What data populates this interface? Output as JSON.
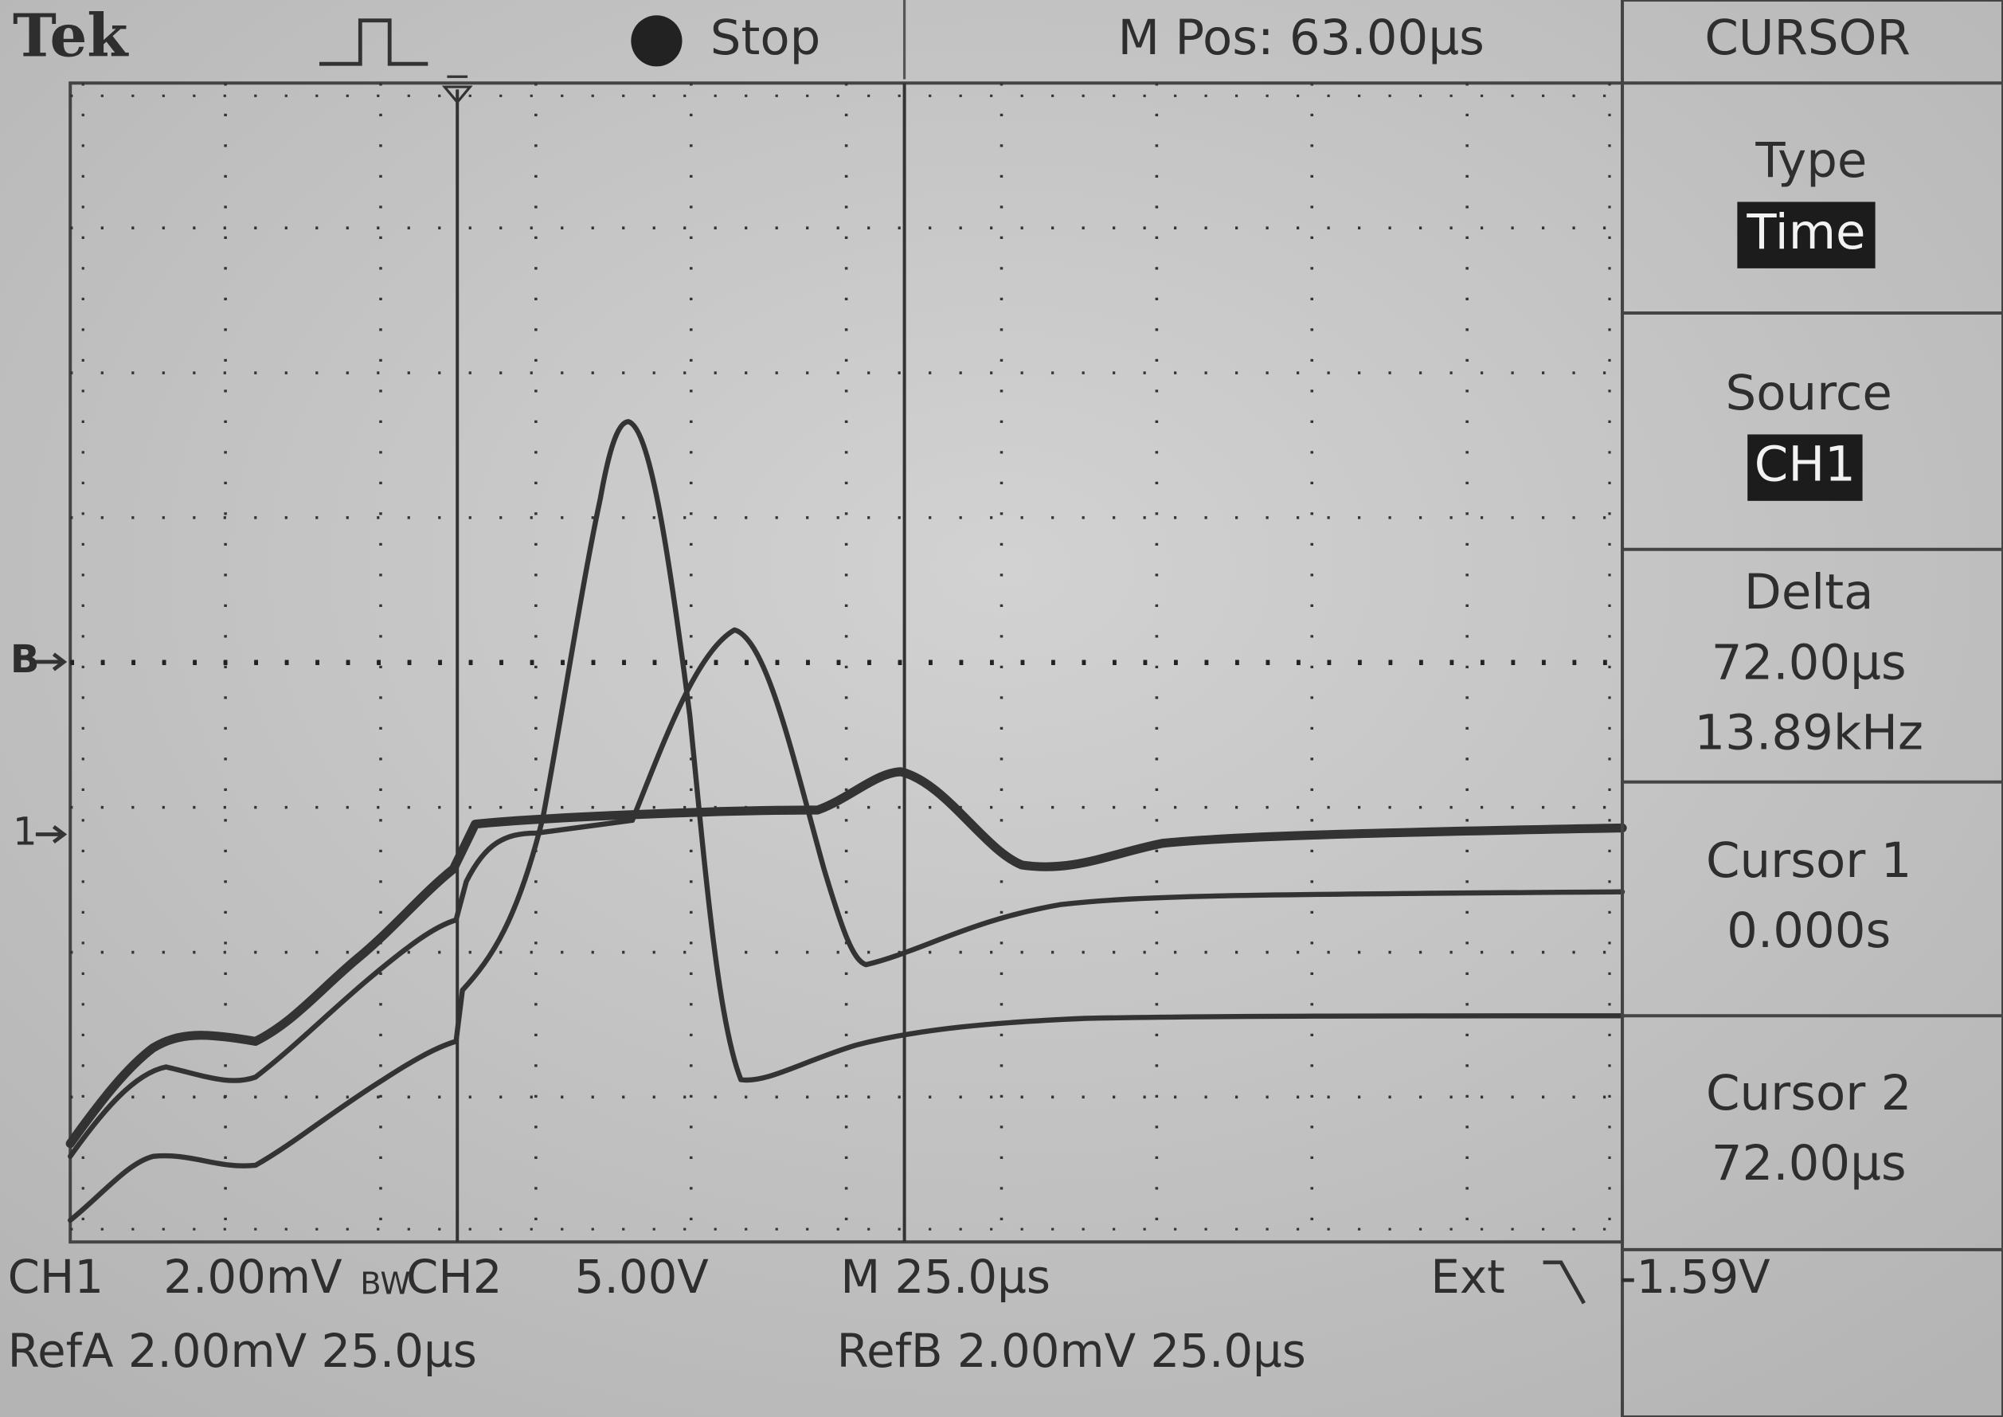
{
  "header": {
    "brand": "Tek",
    "status": "Stop",
    "position": "M Pos: 63.00µs",
    "mode": "CURSOR"
  },
  "menu": [
    {
      "label": "Type",
      "value": "Time"
    },
    {
      "label": "Source",
      "value": "CH1"
    },
    {
      "label": "Delta",
      "values": [
        "72.00µs",
        "13.89kHz"
      ]
    },
    {
      "label": "Cursor 1",
      "value": "0.000s"
    },
    {
      "label": "Cursor 2",
      "value": "72.00µs"
    }
  ],
  "markers": {
    "ref_b": "B",
    "ch1": "1"
  },
  "footer": {
    "ch1": "CH1",
    "ch1_scale": "2.00mV",
    "bw": "BW",
    "ch2": "CH2",
    "ch2_scale": "5.00V",
    "timebase": "M 25.0µs",
    "trigger_source": "Ext",
    "trigger_level": "-1.59V",
    "ref_a": "RefA 2.00mV 25.0µs",
    "ref_b": "RefB 2.00mV 25.0µs"
  }
}
